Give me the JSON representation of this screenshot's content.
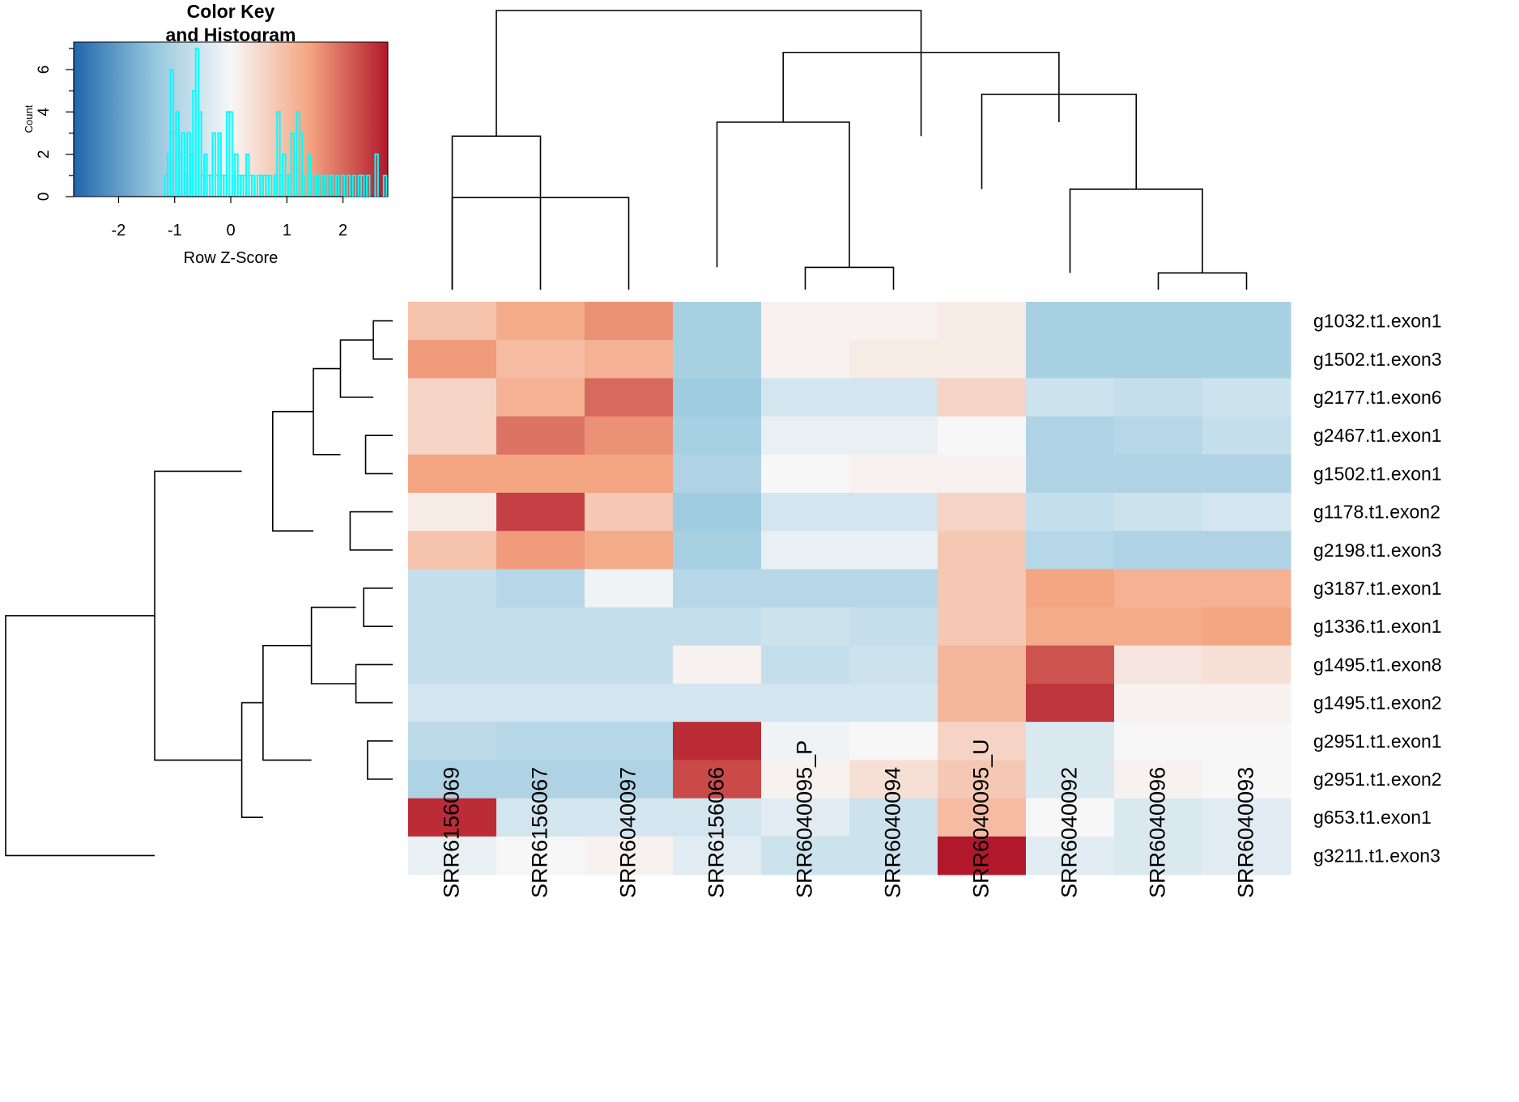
{
  "chart_data": [
    {
      "type": "heatmap",
      "title": "",
      "columns": [
        "SRR6156069",
        "SRR6156067",
        "SRR6040097",
        "SRR6156066",
        "SRR6040095_P",
        "SRR6040094",
        "SRR6040095_U",
        "SRR6040092",
        "SRR6040096",
        "SRR6040093"
      ],
      "rows": [
        "g1032.t1.exon1",
        "g1502.t1.exon3",
        "g2177.t1.exon6",
        "g2467.t1.exon1",
        "g1502.t1.exon1",
        "g1178.t1.exon2",
        "g2198.t1.exon3",
        "g3187.t1.exon1",
        "g1336.t1.exon1",
        "g1495.t1.exon8",
        "g1495.t1.exon2",
        "g2951.t1.exon1",
        "g2951.t1.exon2",
        "g653.t1.exon1",
        "g3211.t1.exon3"
      ],
      "values": [
        [
          0.9,
          1.3,
          1.6,
          -1.1,
          0.1,
          0.1,
          0.2,
          -1.1,
          -1.1,
          -1.1
        ],
        [
          1.5,
          1.0,
          1.2,
          -1.1,
          0.1,
          0.2,
          0.2,
          -1.1,
          -1.1,
          -1.1
        ],
        [
          0.6,
          1.2,
          2.0,
          -1.2,
          -0.5,
          -0.5,
          0.6,
          -0.6,
          -0.7,
          -0.6
        ],
        [
          0.6,
          1.9,
          1.6,
          -1.1,
          -0.2,
          -0.2,
          0.0,
          -1.0,
          -0.9,
          -0.7
        ],
        [
          1.4,
          1.4,
          1.4,
          -1.0,
          0.0,
          0.1,
          0.1,
          -1.0,
          -1.0,
          -1.0
        ],
        [
          0.2,
          2.4,
          0.8,
          -1.2,
          -0.5,
          -0.5,
          0.6,
          -0.7,
          -0.6,
          -0.5
        ],
        [
          0.9,
          1.5,
          1.3,
          -1.1,
          -0.2,
          -0.2,
          0.8,
          -0.9,
          -1.0,
          -1.0
        ],
        [
          -0.7,
          -0.9,
          -0.1,
          -0.9,
          -0.9,
          -0.9,
          0.8,
          1.4,
          1.2,
          1.2
        ],
        [
          -0.7,
          -0.7,
          -0.7,
          -0.7,
          -0.6,
          -0.7,
          0.8,
          1.3,
          1.3,
          1.4
        ],
        [
          -0.7,
          -0.7,
          -0.7,
          0.1,
          -0.7,
          -0.6,
          1.1,
          2.2,
          0.3,
          0.4
        ],
        [
          -0.5,
          -0.5,
          -0.5,
          -0.5,
          -0.5,
          -0.5,
          1.1,
          2.5,
          0.1,
          0.1
        ],
        [
          -0.8,
          -0.9,
          -0.9,
          2.6,
          -0.1,
          0.0,
          0.6,
          -0.4,
          0.0,
          0.0
        ],
        [
          -1.0,
          -1.0,
          -1.0,
          2.3,
          0.1,
          0.4,
          0.8,
          -0.4,
          0.1,
          0.0
        ],
        [
          2.6,
          -0.5,
          -0.5,
          -0.5,
          -0.3,
          -0.6,
          1.0,
          0.0,
          -0.4,
          -0.3
        ],
        [
          -0.2,
          0.0,
          0.1,
          -0.3,
          -0.6,
          -0.6,
          2.9,
          -0.3,
          -0.4,
          -0.3
        ]
      ],
      "colormap": {
        "low": "#2166ac",
        "mid": "#f7f7f7",
        "high": "#b2182b"
      },
      "column_dendrogram": [
        {
          "x1": 0,
          "x2": 2,
          "x": 1,
          "y1": 0,
          "y2": 0.33
        },
        {
          "x1": 0,
          "x2": 1,
          "x": 0.5,
          "y1": 0,
          "y2": 0.55
        },
        {
          "x1": 4,
          "x2": 5,
          "x": 4.5,
          "y1": 0,
          "y2": 0.08
        },
        {
          "x1": 3,
          "x2": 4.5,
          "x": 3.75,
          "y1": 0.08,
          "y2": 0.6
        },
        {
          "x1": 8,
          "x2": 9,
          "x": 8.5,
          "y1": 0,
          "y2": 0.06
        },
        {
          "x1": 7,
          "x2": 8.5,
          "x": 7.75,
          "y1": 0.06,
          "y2": 0.36
        },
        {
          "x1": 6,
          "x2": 7.75,
          "x": 6.875,
          "y1": 0.36,
          "y2": 0.7
        },
        {
          "x1": 3.75,
          "x2": 6.875,
          "x": 5.3125,
          "y1": 0.6,
          "y2": 0.85
        },
        {
          "x1": 0.5,
          "x2": 5.3125,
          "x": 2.90625,
          "y1": 0.55,
          "y2": 1.0
        }
      ],
      "row_dendrogram": [
        {
          "a": 0,
          "b": 1,
          "m": 0.5,
          "h1": 0,
          "h2": 0.05
        },
        {
          "a": 2,
          "b": 0.5,
          "m": 1.25,
          "h1": 0.05,
          "h2": 0.135
        },
        {
          "a": 3,
          "b": 4,
          "m": 3.5,
          "h1": 0,
          "h2": 0.07
        },
        {
          "a": 1.25,
          "b": 3.5,
          "m": 2.375,
          "h1": 0.135,
          "h2": 0.205
        },
        {
          "a": 5,
          "b": 6,
          "m": 5.5,
          "h1": 0,
          "h2": 0.11
        },
        {
          "a": 2.375,
          "b": 5.5,
          "m": 3.9375,
          "h1": 0.205,
          "h2": 0.31
        },
        {
          "a": 7,
          "b": 8,
          "m": 7.5,
          "h1": 0,
          "h2": 0.075
        },
        {
          "a": 9,
          "b": 10,
          "m": 9.5,
          "h1": 0,
          "h2": 0.095
        },
        {
          "a": 7.5,
          "b": 9.5,
          "m": 8.5,
          "h1": 0.095,
          "h2": 0.21
        },
        {
          "a": 11,
          "b": 12,
          "m": 11.5,
          "h1": 0,
          "h2": 0.065
        },
        {
          "a": 8.5,
          "b": 11.5,
          "m": 10.0,
          "h1": 0.21,
          "h2": 0.335
        },
        {
          "a": 13,
          "b": 10.0,
          "m": 11.5,
          "h1": 0.335,
          "h2": 0.39
        },
        {
          "a": 3.9375,
          "b": 11.5,
          "m": 7.71875,
          "h1": 0.39,
          "h2": 0.615
        },
        {
          "a": 14,
          "b": 7.71875,
          "m": 10.859375,
          "h1": 0.615,
          "h2": 1.0
        }
      ]
    },
    {
      "type": "bar",
      "title": "Color Key\nand Histogram",
      "xlabel": "Row Z-Score",
      "ylabel": "Count",
      "xlim": [
        -2.8,
        2.8
      ],
      "ylim": [
        0,
        7.3
      ],
      "xticks": [
        "-2",
        "-1",
        "0",
        "1",
        "2"
      ],
      "yticks": [
        "0",
        "2",
        "4",
        "6"
      ],
      "series": [
        {
          "color": "#00ffff",
          "x": [
            -1.15,
            -1.1,
            -1.05,
            -1.0,
            -0.95,
            -0.9,
            -0.85,
            -0.8,
            -0.75,
            -0.7,
            -0.65,
            -0.6,
            -0.55,
            -0.5,
            -0.45,
            -0.4,
            -0.35,
            -0.3,
            -0.25,
            -0.2,
            -0.15,
            -0.1,
            -0.05,
            0.0,
            0.05,
            0.1,
            0.15,
            0.2,
            0.25,
            0.3,
            0.35,
            0.4,
            0.5,
            0.55,
            0.6,
            0.65,
            0.7,
            0.8,
            0.85,
            0.9,
            0.95,
            1.0,
            1.05,
            1.1,
            1.15,
            1.2,
            1.25,
            1.3,
            1.35,
            1.4,
            1.45,
            1.5,
            1.55,
            1.6,
            1.7,
            1.8,
            1.9,
            2.0,
            2.1,
            2.2,
            2.3,
            2.35,
            2.45,
            2.6,
            2.75
          ],
          "values": [
            1,
            2,
            6,
            3,
            4,
            2,
            3,
            1,
            3,
            2,
            5,
            7,
            4,
            1,
            2,
            1,
            1,
            3,
            1,
            3,
            1,
            1,
            4,
            4,
            1,
            2,
            1,
            1,
            1,
            2,
            1,
            1,
            1,
            1,
            1,
            1,
            1,
            1,
            4,
            1,
            2,
            1,
            1,
            3,
            2,
            4,
            3,
            1,
            1,
            2,
            1,
            1,
            1,
            1,
            1,
            1,
            1,
            1,
            1,
            1,
            1,
            1,
            1,
            2,
            1
          ]
        }
      ]
    }
  ]
}
